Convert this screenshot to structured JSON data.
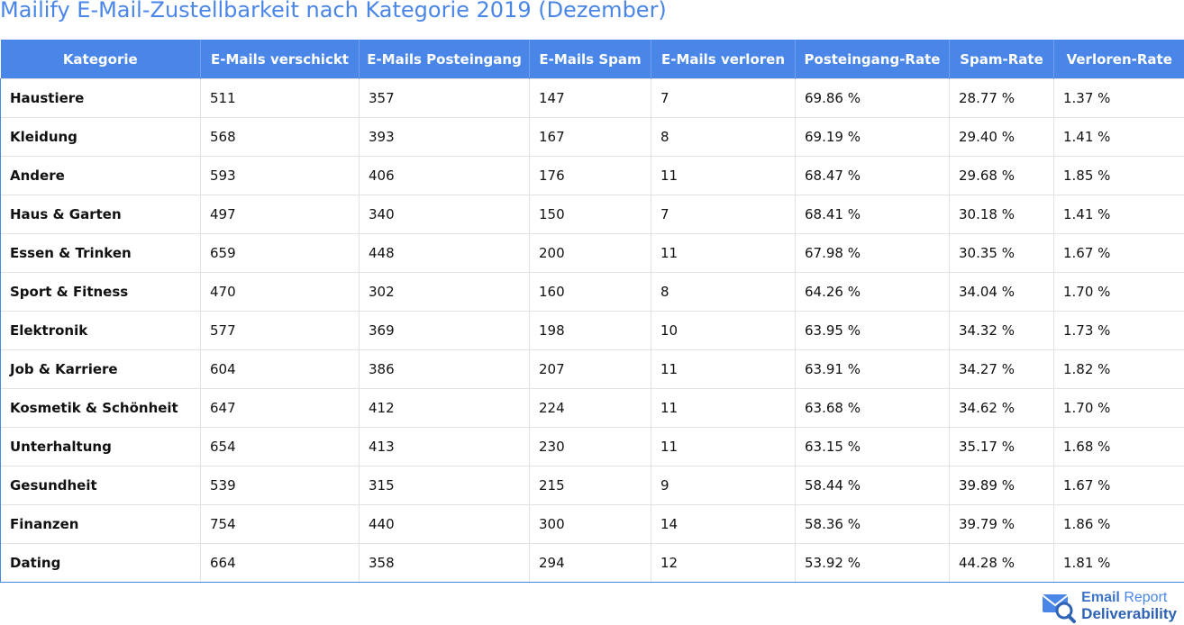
{
  "page": {
    "title": "Mailify E-Mail-Zustellbarkeit nach Kategorie 2019 (Dezember)"
  },
  "colors": {
    "header_bg": "#4a86e8",
    "title": "#4a86e8",
    "logo": "#3d74c9"
  },
  "table": {
    "columns": [
      "Kategorie",
      "E-Mails verschickt",
      "E-Mails Posteingang",
      "E-Mails Spam",
      "E-Mails verloren",
      "Posteingang-Rate",
      "Spam-Rate",
      "Verloren-Rate"
    ],
    "rows": [
      [
        "Haustiere",
        "511",
        "357",
        "147",
        "7",
        "69.86 %",
        "28.77 %",
        "1.37 %"
      ],
      [
        "Kleidung",
        "568",
        "393",
        "167",
        "8",
        "69.19 %",
        "29.40 %",
        "1.41 %"
      ],
      [
        "Andere",
        "593",
        "406",
        "176",
        "11",
        "68.47 %",
        "29.68 %",
        "1.85 %"
      ],
      [
        "Haus & Garten",
        "497",
        "340",
        "150",
        "7",
        "68.41 %",
        "30.18 %",
        "1.41 %"
      ],
      [
        "Essen & Trinken",
        "659",
        "448",
        "200",
        "11",
        "67.98 %",
        "30.35 %",
        "1.67 %"
      ],
      [
        "Sport & Fitness",
        "470",
        "302",
        "160",
        "8",
        "64.26 %",
        "34.04 %",
        "1.70 %"
      ],
      [
        "Elektronik",
        "577",
        "369",
        "198",
        "10",
        "63.95 %",
        "34.32 %",
        "1.73 %"
      ],
      [
        "Job & Karriere",
        "604",
        "386",
        "207",
        "11",
        "63.91 %",
        "34.27 %",
        "1.82 %"
      ],
      [
        "Kosmetik & Schönheit",
        "647",
        "412",
        "224",
        "11",
        "63.68 %",
        "34.62 %",
        "1.70 %"
      ],
      [
        "Unterhaltung",
        "654",
        "413",
        "230",
        "11",
        "63.15 %",
        "35.17 %",
        "1.68 %"
      ],
      [
        "Gesundheit",
        "539",
        "315",
        "215",
        "9",
        "58.44 %",
        "39.89 %",
        "1.67 %"
      ],
      [
        "Finanzen",
        "754",
        "440",
        "300",
        "14",
        "58.36 %",
        "39.79 %",
        "1.86 %"
      ],
      [
        "Dating",
        "664",
        "358",
        "294",
        "12",
        "53.92 %",
        "44.28 %",
        "1.81 %"
      ]
    ]
  },
  "logo": {
    "line1_bold": "Email",
    "line1_light": "Report",
    "line2": "Deliverability",
    "icon": "envelope-magnifier-icon"
  }
}
